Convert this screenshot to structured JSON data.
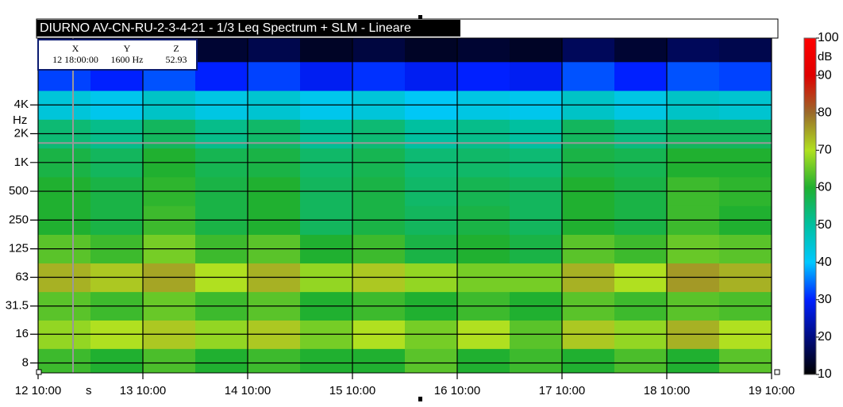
{
  "chart_data": {
    "type": "heatmap",
    "title": "DIURNO AV-CN-RU-2-3-4-21 - 1/3 Leq Spectrum + SLM - Lineare",
    "cursor": {
      "headers": [
        "X",
        "Y",
        "Z"
      ],
      "x": {
        "value": 8,
        "label": "12 18:00:00"
      },
      "y": {
        "value": 1600,
        "label": "1600 Hz"
      },
      "z": 52.93
    },
    "x": [
      6,
      18,
      30,
      42,
      54,
      66,
      78,
      90,
      102,
      114,
      126,
      138,
      150,
      162
    ],
    "y": [
      8,
      16,
      31.5,
      63,
      125,
      250,
      500,
      1000,
      2000,
      4000,
      8000,
      16000
    ],
    "z": [
      [
        62,
        60,
        63,
        60,
        62,
        60,
        60,
        64,
        60,
        62,
        60,
        63,
        60,
        64
      ],
      [
        68,
        70,
        72,
        68,
        72,
        66,
        70,
        66,
        70,
        64,
        72,
        68,
        74,
        70
      ],
      [
        64,
        62,
        65,
        62,
        64,
        60,
        62,
        60,
        62,
        60,
        64,
        62,
        64,
        63
      ],
      [
        74,
        72,
        75,
        70,
        74,
        68,
        72,
        68,
        66,
        66,
        74,
        70,
        76,
        74
      ],
      [
        64,
        62,
        66,
        62,
        64,
        60,
        62,
        58,
        60,
        58,
        64,
        62,
        65,
        64
      ],
      [
        60,
        58,
        62,
        58,
        60,
        56,
        58,
        56,
        58,
        56,
        60,
        58,
        62,
        60
      ],
      [
        60,
        58,
        61,
        58,
        60,
        56,
        58,
        55,
        57,
        56,
        60,
        58,
        62,
        61
      ],
      [
        58,
        56,
        60,
        57,
        58,
        55,
        57,
        54,
        55,
        54,
        58,
        57,
        60,
        60
      ],
      [
        54,
        52,
        56,
        52,
        55,
        51,
        54,
        50,
        52,
        50,
        56,
        53,
        56,
        56
      ],
      [
        44,
        42,
        46,
        43,
        45,
        42,
        44,
        41,
        43,
        42,
        46,
        43,
        46,
        45
      ],
      [
        32,
        30,
        33,
        30,
        32,
        29,
        31,
        29,
        30,
        29,
        33,
        30,
        33,
        32
      ],
      [
        16,
        14,
        17,
        14,
        16,
        13,
        15,
        13,
        14,
        13,
        17,
        14,
        17,
        16
      ]
    ],
    "xlim": [
      0,
      168
    ],
    "xticks": [
      {
        "value": 0,
        "label": "12 10:00"
      },
      {
        "value": 24,
        "label": "13 10:00"
      },
      {
        "value": 48,
        "label": "14 10:00"
      },
      {
        "value": 72,
        "label": "15 10:00"
      },
      {
        "value": 96,
        "label": "16 10:00"
      },
      {
        "value": 120,
        "label": "17 10:00"
      },
      {
        "value": 144,
        "label": "18 10:00"
      },
      {
        "value": 168,
        "label": "19 10:00"
      }
    ],
    "x_unit": "s",
    "ylim": [
      6.3,
      20000
    ],
    "log_y": true,
    "yticks": [
      8,
      16,
      31.5,
      63,
      125,
      250,
      500,
      {
        "value": 1000,
        "label": "1K"
      },
      {
        "value": 2000,
        "label": "2K"
      },
      {
        "value": 4000,
        "label": "4K"
      }
    ],
    "y_unit": "Hz",
    "zlim": [
      10,
      100
    ],
    "zticks": [
      10,
      20,
      30,
      40,
      50,
      60,
      70,
      80,
      90,
      100
    ],
    "z_unit": "dB",
    "colormap": [
      "#000000",
      "#000c80",
      "#0020ff",
      "#00c8ff",
      "#00c0a0",
      "#20b030",
      "#b0e020",
      "#9a6a2a",
      "#e00000",
      "#ff0000"
    ],
    "grid": true
  }
}
